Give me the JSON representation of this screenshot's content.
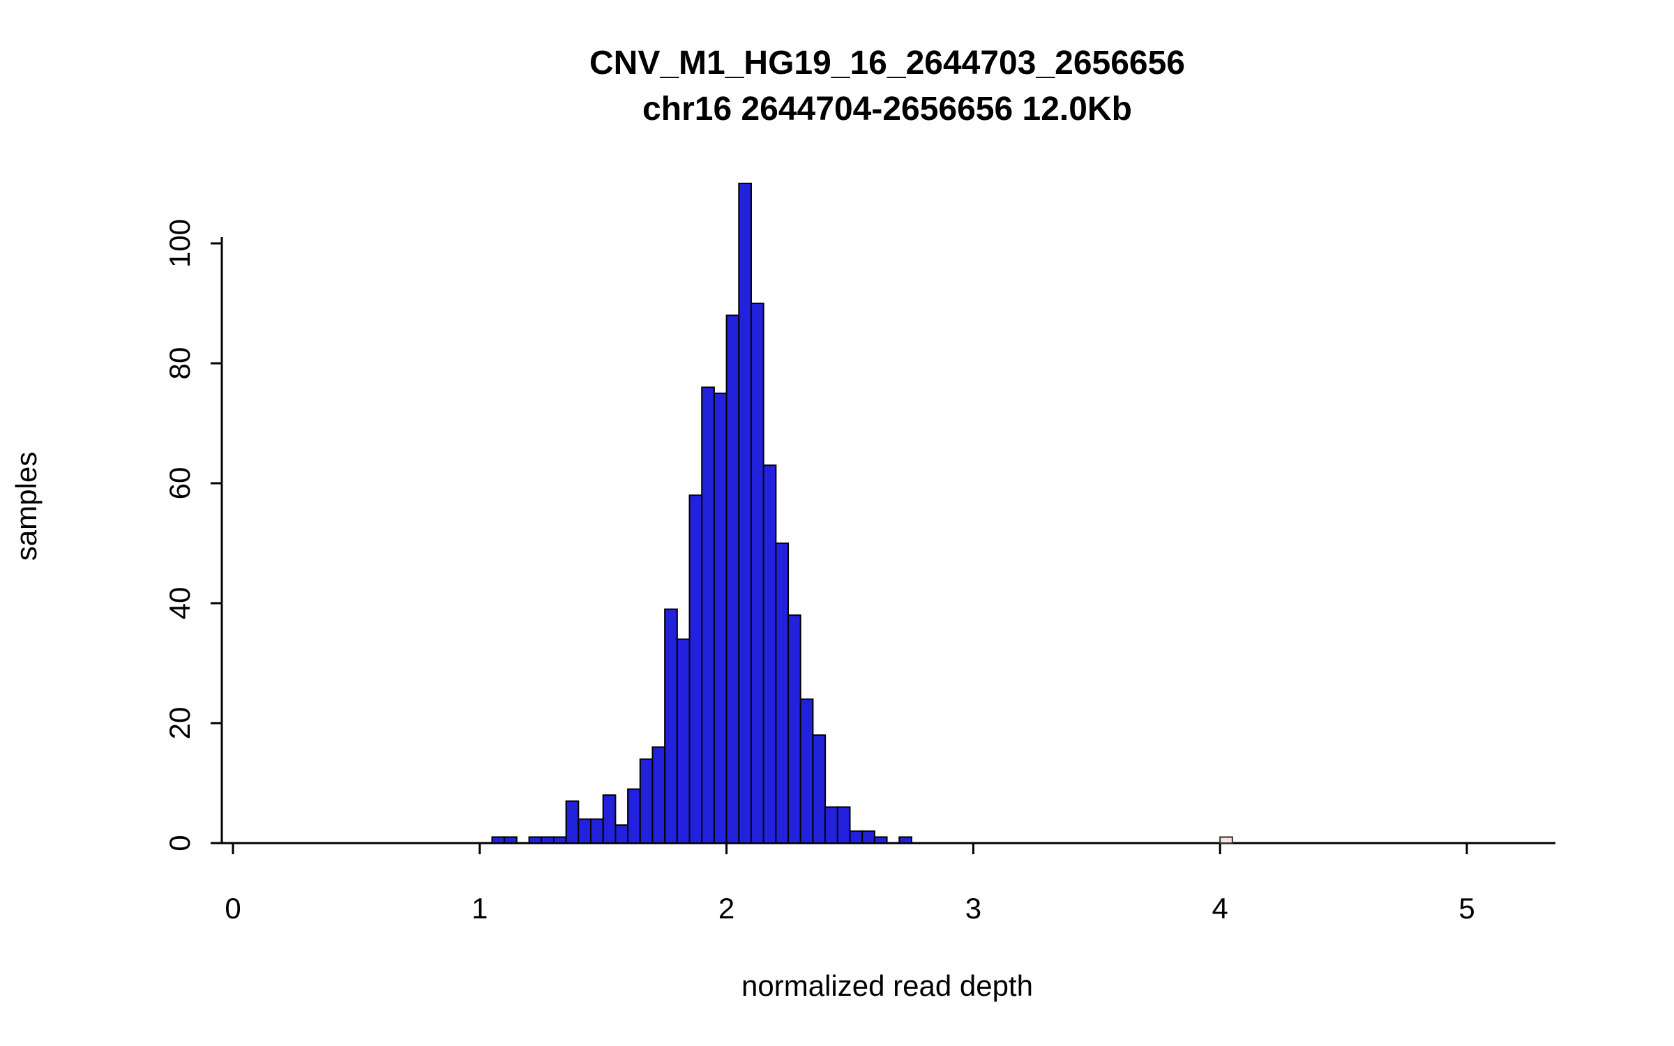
{
  "title": "CNV_M1_HG19_16_2644703_2656656",
  "subtitle": "chr16 2644704-2656656 12.0Kb",
  "chart_data": {
    "type": "bar",
    "subtype": "histogram",
    "title": "CNV_M1_HG19_16_2644703_2656656",
    "subtitle": "chr16 2644704-2656656 12.0Kb",
    "xlabel": "normalized read depth",
    "ylabel": "samples",
    "bin_width": 0.05,
    "xlim": [
      0,
      5.35
    ],
    "ylim": [
      0,
      110
    ],
    "x_ticks": [
      0,
      1,
      2,
      3,
      4,
      5
    ],
    "y_ticks": [
      0,
      20,
      40,
      60,
      80,
      100
    ],
    "grid": false,
    "legend": "none",
    "bar_fill": "#2222DD",
    "bar_stroke": "#000000",
    "outlier_fill": "#FFE4E1",
    "outlier_stroke": "#333333",
    "axis_color": "#000000",
    "bars": [
      {
        "x": 1.05,
        "count": 1
      },
      {
        "x": 1.1,
        "count": 1
      },
      {
        "x": 1.2,
        "count": 1
      },
      {
        "x": 1.25,
        "count": 1
      },
      {
        "x": 1.3,
        "count": 1
      },
      {
        "x": 1.35,
        "count": 7
      },
      {
        "x": 1.4,
        "count": 4
      },
      {
        "x": 1.45,
        "count": 4
      },
      {
        "x": 1.5,
        "count": 8
      },
      {
        "x": 1.55,
        "count": 3
      },
      {
        "x": 1.6,
        "count": 9
      },
      {
        "x": 1.65,
        "count": 14
      },
      {
        "x": 1.7,
        "count": 16
      },
      {
        "x": 1.75,
        "count": 39
      },
      {
        "x": 1.8,
        "count": 34
      },
      {
        "x": 1.85,
        "count": 58
      },
      {
        "x": 1.9,
        "count": 76
      },
      {
        "x": 1.95,
        "count": 75
      },
      {
        "x": 2.0,
        "count": 88
      },
      {
        "x": 2.05,
        "count": 110
      },
      {
        "x": 2.1,
        "count": 90
      },
      {
        "x": 2.15,
        "count": 63
      },
      {
        "x": 2.2,
        "count": 50
      },
      {
        "x": 2.25,
        "count": 38
      },
      {
        "x": 2.3,
        "count": 24
      },
      {
        "x": 2.35,
        "count": 18
      },
      {
        "x": 2.4,
        "count": 6
      },
      {
        "x": 2.45,
        "count": 6
      },
      {
        "x": 2.5,
        "count": 2
      },
      {
        "x": 2.55,
        "count": 2
      },
      {
        "x": 2.6,
        "count": 1
      },
      {
        "x": 2.7,
        "count": 1
      }
    ],
    "outlier_bars": [
      {
        "x": 4.0,
        "count": 1
      }
    ]
  }
}
